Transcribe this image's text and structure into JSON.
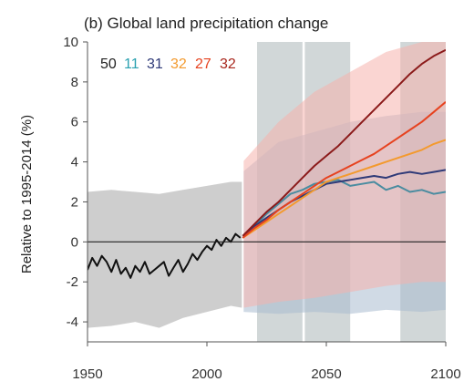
{
  "chart_data": {
    "type": "line",
    "title": "(b) Global land precipitation change",
    "xlabel": "",
    "ylabel": "Relative to 1995-2014 (%)",
    "xlim": [
      1950,
      2100
    ],
    "ylim": [
      -5,
      10
    ],
    "xticks": [
      1950,
      2000,
      2050,
      2100
    ],
    "yticks": [
      -4,
      -2,
      0,
      2,
      4,
      6,
      8,
      10
    ],
    "shaded_periods": [
      [
        2021,
        2040
      ],
      [
        2041,
        2060
      ],
      [
        2081,
        2100
      ]
    ],
    "zero_line": 0,
    "historical_divider": 2015,
    "legend": [
      {
        "label": "50",
        "color": "#222222"
      },
      {
        "label": "11",
        "color": "#2aa1b0"
      },
      {
        "label": "31",
        "color": "#2f3a78"
      },
      {
        "label": "32",
        "color": "#f39a2e"
      },
      {
        "label": "27",
        "color": "#e6421f"
      },
      {
        "label": "32",
        "color": "#a8261c"
      }
    ],
    "series": [
      {
        "color": "#111111",
        "x": [
          1950,
          1952,
          1954,
          1956,
          1958,
          1960,
          1962,
          1964,
          1966,
          1968,
          1970,
          1972,
          1974,
          1976,
          1978,
          1980,
          1982,
          1984,
          1986,
          1988,
          1990,
          1992,
          1994,
          1996,
          1998,
          2000,
          2002,
          2004,
          2006,
          2008,
          2010,
          2012,
          2014
        ],
        "y": [
          -1.4,
          -0.8,
          -1.2,
          -0.7,
          -1.0,
          -1.5,
          -0.9,
          -1.6,
          -1.3,
          -1.8,
          -1.2,
          -1.5,
          -1.0,
          -1.6,
          -1.4,
          -1.2,
          -1.0,
          -1.7,
          -1.3,
          -0.9,
          -1.5,
          -1.1,
          -0.6,
          -0.9,
          -0.5,
          -0.2,
          -0.4,
          0.1,
          -0.2,
          0.2,
          0.0,
          0.4,
          0.2
        ]
      },
      {
        "color": "#4a8ca0",
        "x": [
          2015,
          2020,
          2025,
          2030,
          2035,
          2040,
          2045,
          2050,
          2055,
          2060,
          2065,
          2070,
          2075,
          2080,
          2085,
          2090,
          2095,
          2100
        ],
        "y": [
          0.3,
          0.8,
          1.4,
          1.9,
          2.4,
          2.6,
          2.9,
          3.0,
          3.1,
          2.8,
          2.9,
          3.0,
          2.6,
          2.8,
          2.5,
          2.6,
          2.4,
          2.5
        ]
      },
      {
        "color": "#2f3a78",
        "x": [
          2015,
          2020,
          2025,
          2030,
          2035,
          2040,
          2045,
          2050,
          2055,
          2060,
          2065,
          2070,
          2075,
          2080,
          2085,
          2090,
          2095,
          2100
        ],
        "y": [
          0.2,
          0.8,
          1.2,
          1.6,
          2.0,
          2.3,
          2.6,
          2.9,
          3.0,
          3.1,
          3.2,
          3.3,
          3.2,
          3.4,
          3.5,
          3.4,
          3.5,
          3.6
        ]
      },
      {
        "color": "#f39a2e",
        "x": [
          2015,
          2020,
          2025,
          2030,
          2035,
          2040,
          2045,
          2050,
          2055,
          2060,
          2065,
          2070,
          2075,
          2080,
          2085,
          2090,
          2095,
          2100
        ],
        "y": [
          0.2,
          0.6,
          1.0,
          1.4,
          1.8,
          2.2,
          2.6,
          3.0,
          3.2,
          3.4,
          3.6,
          3.8,
          4.0,
          4.2,
          4.4,
          4.6,
          4.9,
          5.1
        ]
      },
      {
        "color": "#e6421f",
        "x": [
          2015,
          2020,
          2025,
          2030,
          2035,
          2040,
          2045,
          2050,
          2055,
          2060,
          2065,
          2070,
          2075,
          2080,
          2085,
          2090,
          2095,
          2100
        ],
        "y": [
          0.2,
          0.7,
          1.1,
          1.6,
          2.0,
          2.4,
          2.8,
          3.2,
          3.5,
          3.8,
          4.1,
          4.4,
          4.8,
          5.2,
          5.6,
          6.0,
          6.5,
          7.0
        ]
      },
      {
        "color": "#8b1a1a",
        "x": [
          2015,
          2020,
          2025,
          2030,
          2035,
          2040,
          2045,
          2050,
          2055,
          2060,
          2065,
          2070,
          2075,
          2080,
          2085,
          2090,
          2095,
          2100
        ],
        "y": [
          0.3,
          0.9,
          1.5,
          2.0,
          2.6,
          3.2,
          3.8,
          4.3,
          4.8,
          5.4,
          6.0,
          6.6,
          7.2,
          7.8,
          8.4,
          8.9,
          9.3,
          9.6
        ]
      }
    ],
    "bands": [
      {
        "color": "#bdbdbd",
        "x": [
          1950,
          1960,
          1970,
          1980,
          1990,
          2000,
          2010,
          2015
        ],
        "lower": [
          -4.3,
          -4.2,
          -4.0,
          -4.3,
          -3.8,
          -3.5,
          -3.2,
          -3.3
        ],
        "upper": [
          2.5,
          2.6,
          2.5,
          2.4,
          2.6,
          2.8,
          3.0,
          3.0
        ]
      },
      {
        "color": "#a9bccf",
        "x": [
          2015,
          2030,
          2045,
          2060,
          2075,
          2090,
          2100
        ],
        "lower": [
          -3.5,
          -3.6,
          -3.5,
          -3.6,
          -3.4,
          -3.5,
          -3.4
        ],
        "upper": [
          3.5,
          5.0,
          5.5,
          6.0,
          6.3,
          6.5,
          6.5
        ]
      },
      {
        "color": "#f5b3ad",
        "x": [
          2015,
          2030,
          2045,
          2060,
          2075,
          2090,
          2100
        ],
        "lower": [
          -3.3,
          -3.0,
          -2.8,
          -2.5,
          -2.2,
          -2.0,
          -2.0
        ],
        "upper": [
          4.0,
          6.0,
          7.5,
          8.5,
          9.5,
          10.0,
          10.0
        ]
      }
    ]
  }
}
